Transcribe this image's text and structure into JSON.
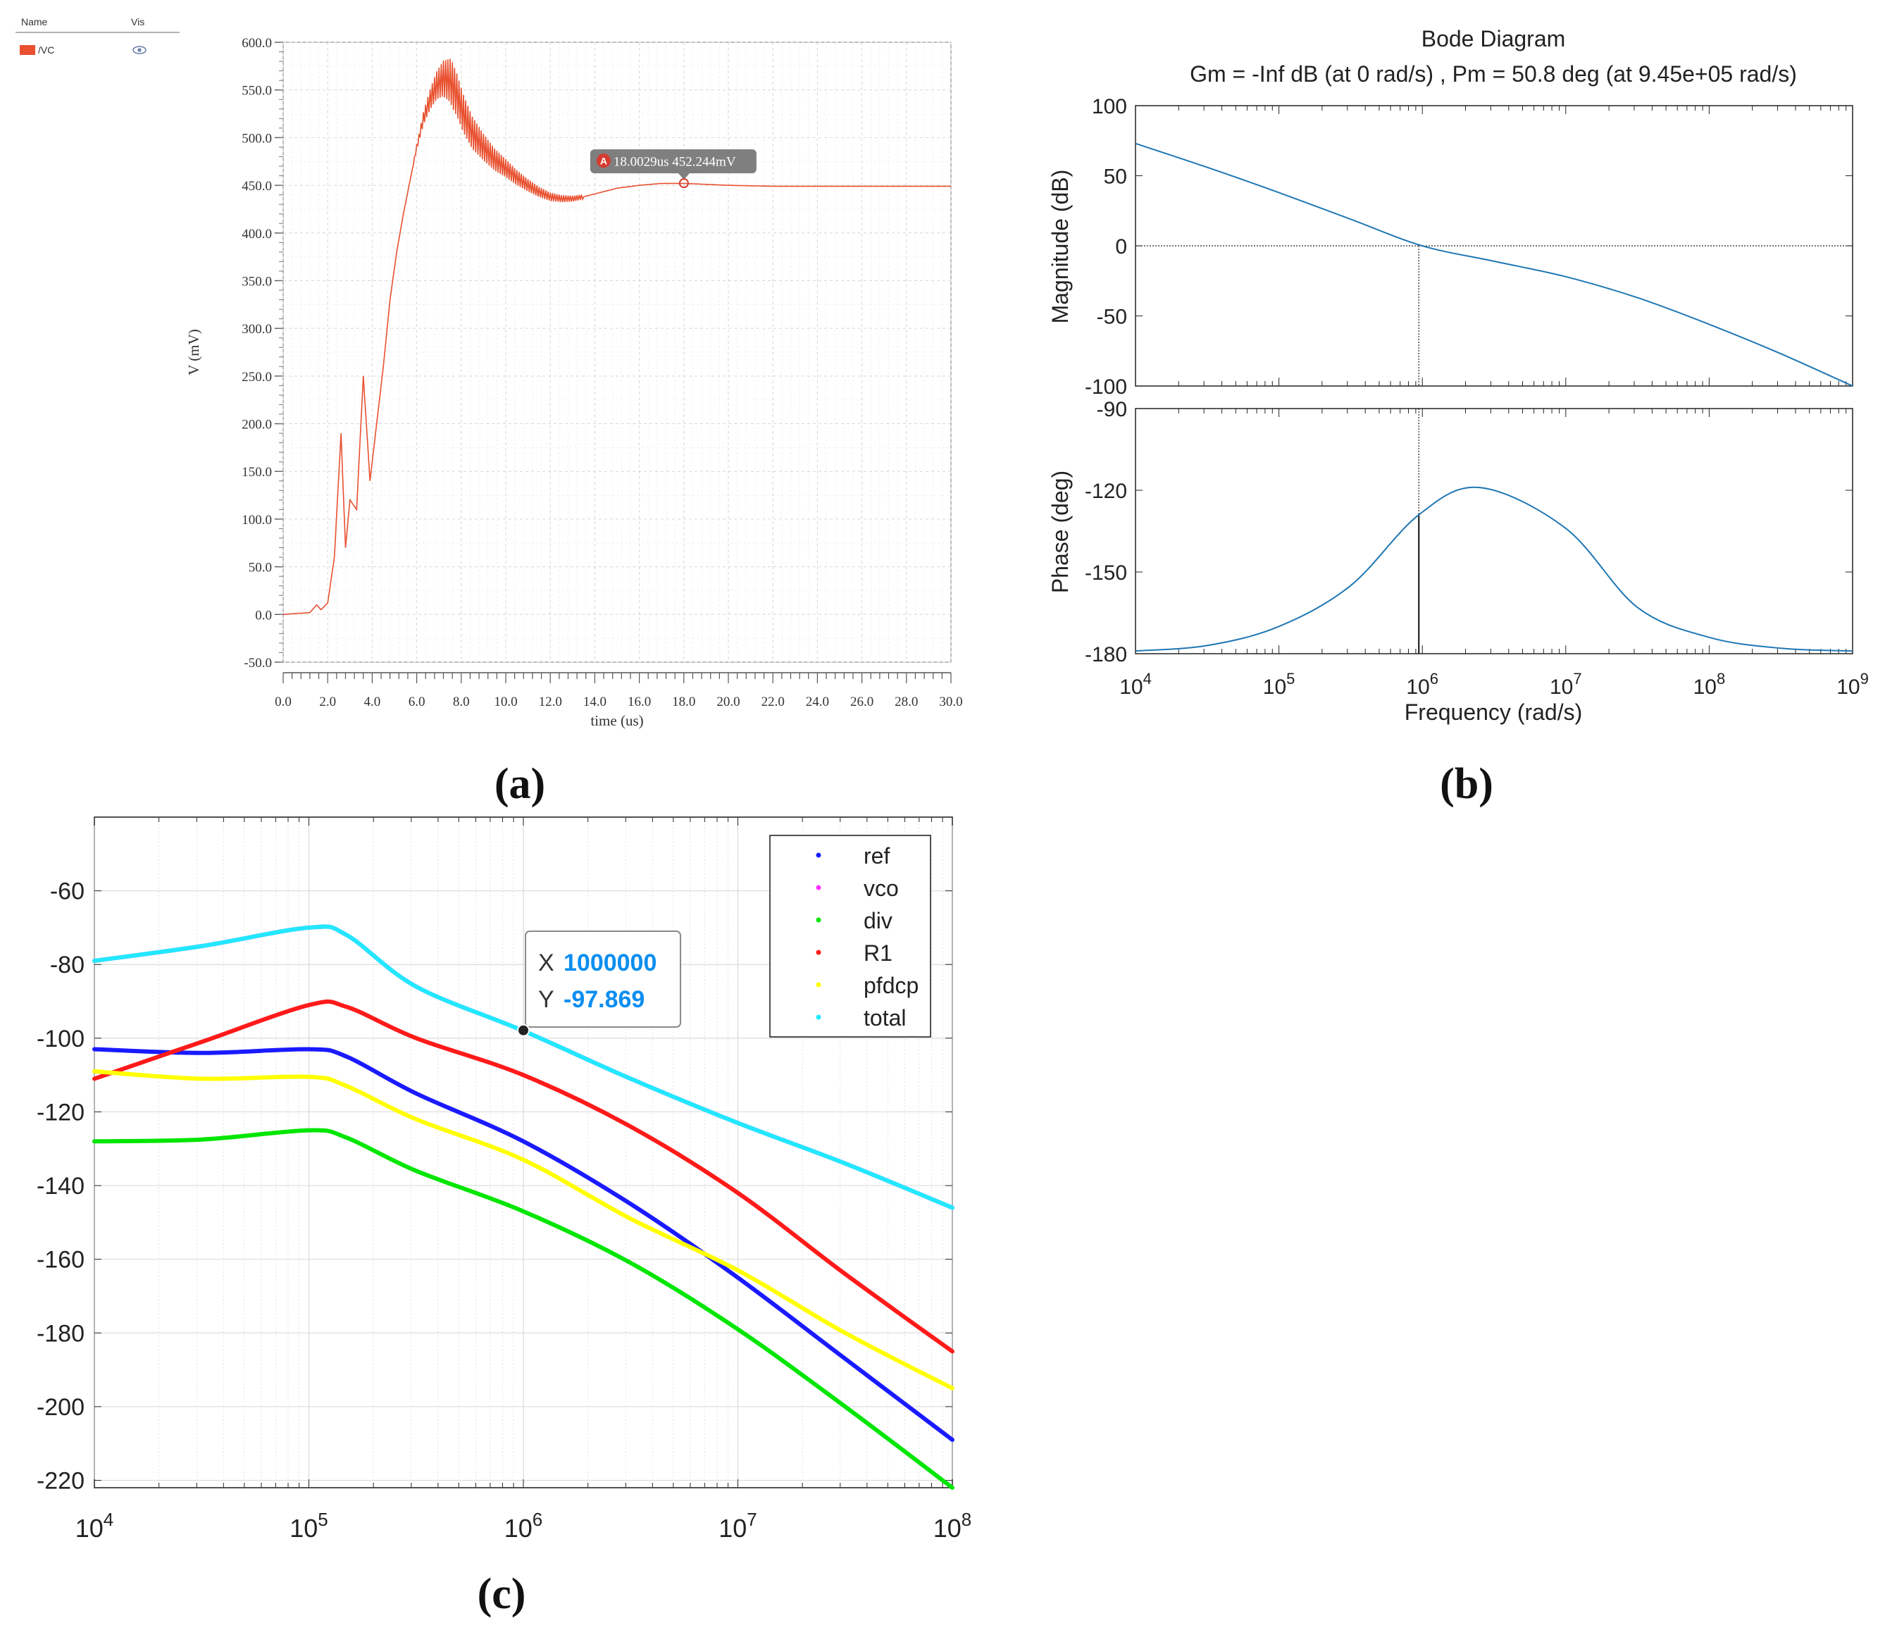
{
  "panels": {
    "a": {
      "label": "(a)"
    },
    "b": {
      "label": "(b)"
    },
    "c": {
      "label": "(c)"
    }
  },
  "chart_data": [
    {
      "id": "a",
      "type": "line",
      "legend": {
        "name_header": "Name",
        "vis_header": "Vis",
        "entry": "/VC",
        "color": "#e8502f",
        "vis_icon": "eye-icon"
      },
      "xlabel": "time (us)",
      "ylabel": "V (mV)",
      "xlim": [
        0,
        30
      ],
      "ylim": [
        -50,
        600
      ],
      "xticks": [
        "0.0",
        "2.0",
        "4.0",
        "6.0",
        "8.0",
        "10.0",
        "12.0",
        "14.0",
        "16.0",
        "18.0",
        "20.0",
        "22.0",
        "24.0",
        "26.0",
        "28.0",
        "30.0"
      ],
      "yticks": [
        "600.0",
        "550.0",
        "500.0",
        "450.0",
        "400.0",
        "350.0",
        "300.0",
        "250.0",
        "200.0",
        "150.0",
        "100.0",
        "50.0",
        "0.0",
        "-50.0"
      ],
      "marker": {
        "id": "A",
        "text": "18.0029us 452.244mV",
        "x": 18.0029,
        "y": 452.244
      },
      "series": [
        {
          "name": "/VC",
          "color": "#e8502f",
          "x": [
            0,
            1.2,
            1.5,
            1.7,
            2.0,
            2.3,
            2.6,
            2.8,
            3.0,
            3.3,
            3.6,
            3.9,
            4.2,
            4.5,
            4.8,
            5.1,
            5.4,
            5.7,
            6.0,
            6.3,
            6.6,
            6.9,
            7.2,
            7.5,
            7.8,
            8.1,
            8.5,
            9.0,
            9.5,
            10,
            10.5,
            11,
            11.5,
            12,
            12.5,
            13,
            13.5,
            14,
            14.5,
            15,
            16,
            17,
            18,
            19,
            20,
            22,
            24,
            26,
            28,
            30
          ],
          "y": [
            0,
            2,
            10,
            5,
            12,
            60,
            190,
            70,
            120,
            110,
            250,
            140,
            200,
            260,
            330,
            380,
            420,
            455,
            490,
            520,
            540,
            555,
            562,
            560,
            545,
            525,
            505,
            490,
            477,
            468,
            458,
            450,
            443,
            438,
            436,
            436,
            438,
            441,
            444,
            447,
            450,
            452,
            452,
            451,
            450,
            449,
            449,
            449,
            449,
            449
          ]
        }
      ]
    },
    {
      "id": "b",
      "type": "line",
      "title": "Bode Diagram",
      "subtitle": "Gm = -Inf dB (at 0 rad/s) ,  Pm = 50.8 deg (at 9.45e+05 rad/s)",
      "xlabel": "Frequency  (rad/s)",
      "xscale": "log",
      "xlim": [
        10000,
        1000000000
      ],
      "xtick_labels": [
        "4",
        "5",
        "6",
        "7",
        "8",
        "9"
      ],
      "magnitude": {
        "ylabel": "Magnitude (dB)",
        "ylim": [
          -100,
          100
        ],
        "yticks": [
          "100",
          "50",
          "0",
          "-50",
          "-100"
        ],
        "x": [
          10000,
          31623,
          100000,
          316228,
          1000000,
          3162278,
          10000000,
          31622777,
          100000000,
          316227766,
          1000000000
        ],
        "y": [
          73,
          56,
          38,
          19,
          0,
          -11,
          -22,
          -37,
          -56,
          -77,
          -100
        ]
      },
      "phase": {
        "ylabel": "Phase (deg)",
        "ylim": [
          -180,
          -90
        ],
        "yticks": [
          "-90",
          "-120",
          "-150",
          "-180"
        ],
        "x": [
          10000,
          31623,
          100000,
          316228,
          945000,
          2512000,
          10000000,
          31622777,
          100000000,
          316227766,
          1000000000
        ],
        "y": [
          -179,
          -177,
          -170,
          -155,
          -129,
          -119,
          -134,
          -163,
          -174,
          -178,
          -179
        ]
      },
      "crossover": 945000
    },
    {
      "id": "c",
      "type": "line",
      "xscale": "log",
      "xlim": [
        10000,
        100000000
      ],
      "ylim": [
        -222,
        -40
      ],
      "xtick_labels": [
        "4",
        "5",
        "6",
        "7",
        "8"
      ],
      "yticks": [
        "-60",
        "-80",
        "-100",
        "-120",
        "-140",
        "-160",
        "-180",
        "-200",
        "-220"
      ],
      "x": [
        10000,
        31623,
        100000,
        150000,
        316228,
        1000000,
        3162278,
        10000000,
        31622777,
        100000000
      ],
      "series": [
        {
          "name": "ref",
          "color": "#1a1aff",
          "values": [
            -103,
            -104,
            -103,
            -105,
            -115,
            -128,
            -145,
            -165,
            -187,
            -209
          ]
        },
        {
          "name": "vco",
          "color": "#ff33ff",
          "values": [
            -79,
            -75,
            -70,
            -72,
            -86,
            -98,
            -111,
            -123,
            -134,
            -146
          ]
        },
        {
          "name": "div",
          "color": "#00e600",
          "values": [
            -128,
            -127.5,
            -125,
            -127,
            -136,
            -147,
            -161,
            -179,
            -200,
            -222
          ]
        },
        {
          "name": "R1",
          "color": "#ff1a1a",
          "values": [
            -111,
            -101,
            -91,
            -91.5,
            -100,
            -110,
            -124,
            -142,
            -164,
            -185
          ]
        },
        {
          "name": "pfdcp",
          "color": "#ffff00",
          "values": [
            -109,
            -111,
            -110.5,
            -113,
            -122,
            -133,
            -149,
            -163,
            -180,
            -195
          ]
        },
        {
          "name": "total",
          "color": "#22e8ff",
          "values": [
            -79,
            -75,
            -70,
            -72,
            -86,
            -98,
            -111,
            -123,
            -134,
            -146
          ]
        }
      ],
      "datatip": {
        "x_label": "X",
        "x_value": "1000000",
        "y_label": "Y",
        "y_value": "-97.869",
        "x": 1000000,
        "y": -97.869
      }
    }
  ]
}
